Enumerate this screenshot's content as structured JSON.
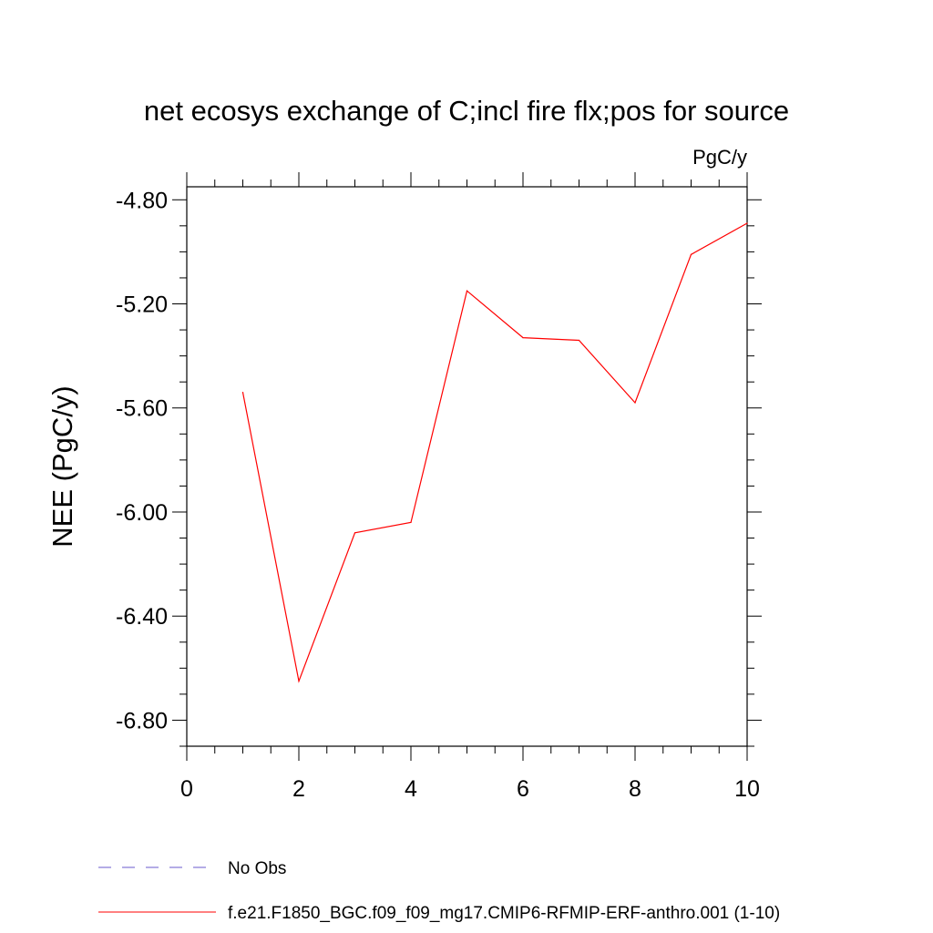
{
  "chart_data": {
    "type": "line",
    "title": "net ecosys exchange of C;incl fire flx;pos for source",
    "units": "PgC/y",
    "xlabel": "",
    "ylabel": "NEE  (PgC/y)",
    "xlim": [
      0,
      10
    ],
    "ylim": [
      -6.9,
      -4.75
    ],
    "x_ticks": [
      0,
      2,
      4,
      6,
      8,
      10
    ],
    "x_tick_labels": [
      "0",
      "2",
      "4",
      "6",
      "8",
      "10"
    ],
    "y_ticks": [
      -6.8,
      -6.4,
      -6.0,
      -5.6,
      -5.2,
      -4.8
    ],
    "y_tick_labels": [
      "-6.80",
      "-6.40",
      "-6.00",
      "-5.60",
      "-5.20",
      "-4.80"
    ],
    "grid": false,
    "legend_placement": "bottom-left",
    "series": [
      {
        "name": "f.e21.F1850_BGC.f09_f09_mg17.CMIP6-RFMIP-ERF-anthro.001 (1-10)",
        "color": "#ff0000",
        "style": "solid",
        "x": [
          1,
          2,
          3,
          4,
          5,
          6,
          7,
          8,
          9,
          10
        ],
        "y": [
          -5.54,
          -6.65,
          -6.08,
          -6.04,
          -5.15,
          -5.33,
          -5.34,
          -5.58,
          -5.01,
          -4.89
        ]
      }
    ],
    "legend": [
      {
        "label": "No Obs",
        "color": "#6a5acd",
        "style": "dashed"
      },
      {
        "label": "f.e21.F1850_BGC.f09_f09_mg17.CMIP6-RFMIP-ERF-anthro.001 (1-10)",
        "color": "#ff0000",
        "style": "solid"
      }
    ]
  }
}
